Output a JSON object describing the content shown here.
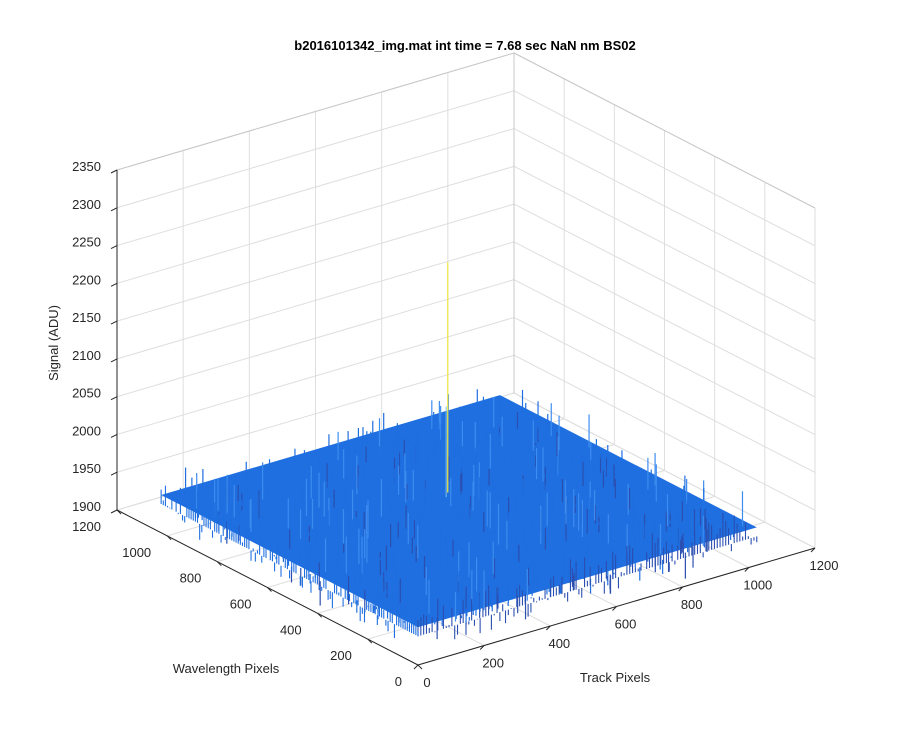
{
  "chart_data": {
    "type": "surface",
    "title": "b2016101342_img.mat int time = 7.68 sec  NaN nm BS02",
    "xlabel": "Track Pixels",
    "ylabel": "Wavelength Pixels",
    "zlabel": "Signal (ADU)",
    "xlim": [
      0,
      1200
    ],
    "ylim": [
      0,
      1200
    ],
    "zlim": [
      1900,
      2350
    ],
    "x_ticks": [
      "0",
      "200",
      "400",
      "600",
      "800",
      "1000",
      "1200"
    ],
    "y_ticks": [
      "0",
      "200",
      "400",
      "600",
      "800",
      "1000",
      "1200"
    ],
    "z_ticks": [
      "1900",
      "1950",
      "2000",
      "2050",
      "2100",
      "2150",
      "2200",
      "2250",
      "2300",
      "2350"
    ],
    "grid": true,
    "data_extent": {
      "x": [
        0,
        1024
      ],
      "y": [
        0,
        1024
      ]
    },
    "signal_baseline": 1950,
    "signal_noise_range": [
      1905,
      2000
    ],
    "signal_peak": 2255,
    "colormap": "parula",
    "colors": {
      "surface_main": "#1f6fe0",
      "surface_low": "#2a4fb0",
      "surface_high": "#f2e640"
    }
  }
}
